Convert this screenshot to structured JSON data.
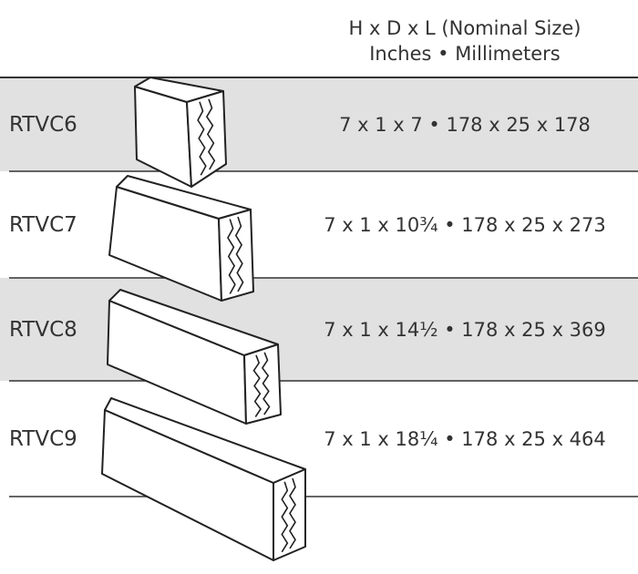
{
  "header": {
    "line1": "H x D x L (Nominal Size)",
    "line2": "Inches • Millimeters"
  },
  "rows": [
    {
      "code": "RTVC6",
      "size": "7 x 1 x 7  •  178 x 25 x 178"
    },
    {
      "code": "RTVC7",
      "size": "7 x 1 x 10¾  •  178 x 25 x 273"
    },
    {
      "code": "RTVC8",
      "size": "7 x 1 x 14½  •  178 x 25 x 369"
    },
    {
      "code": "RTVC9",
      "size": "7 x 1 x 18¼  •  178 x 25 x 464"
    }
  ]
}
